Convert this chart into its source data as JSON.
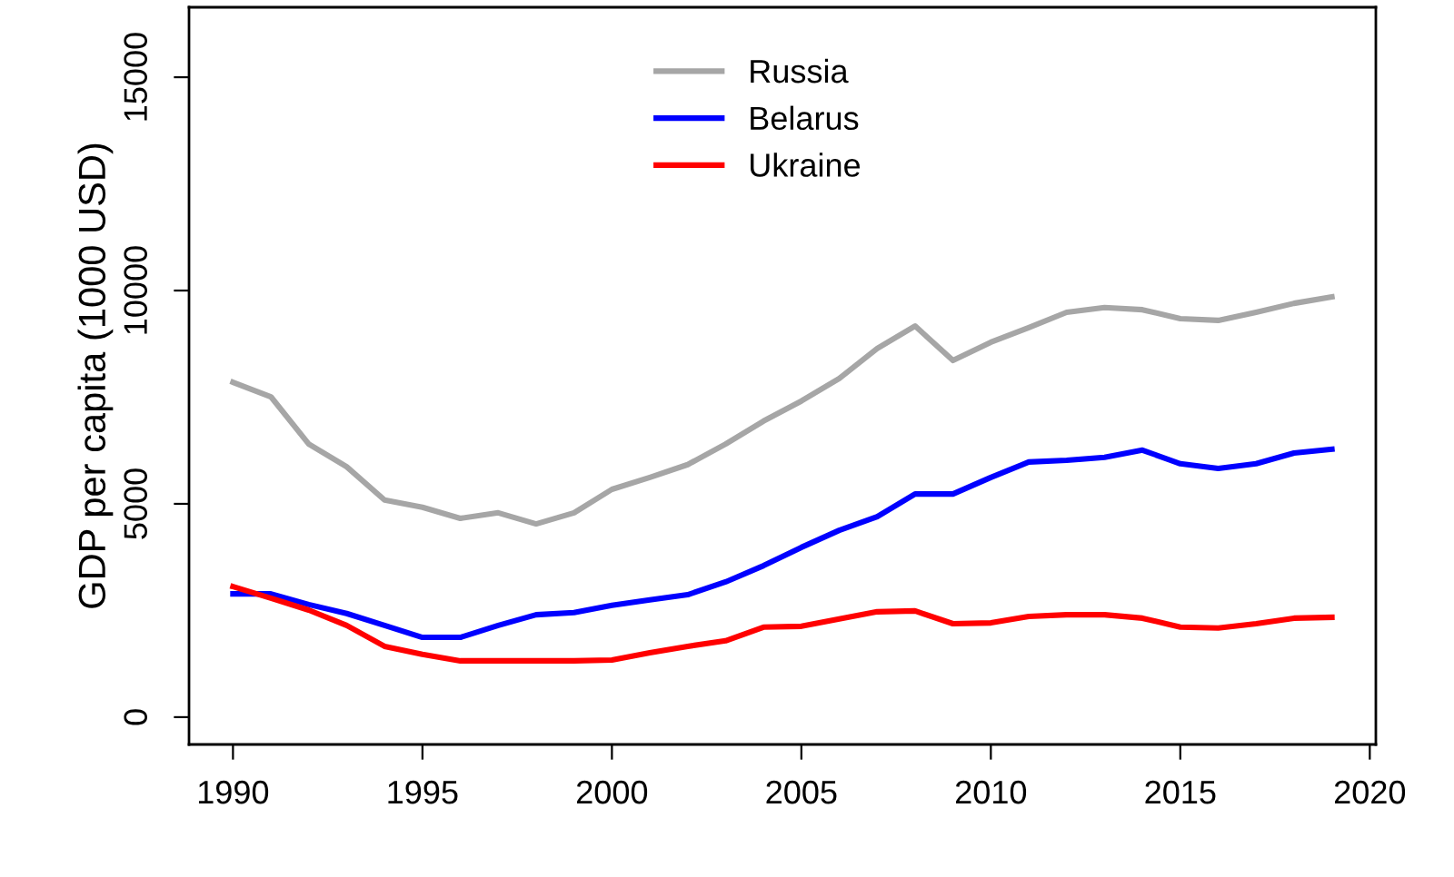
{
  "chart_data": {
    "type": "line",
    "ylabel": "GDP per capita (1000 USD)",
    "x": [
      1990,
      1991,
      1992,
      1993,
      1994,
      1995,
      1996,
      1997,
      1998,
      1999,
      2000,
      2001,
      2002,
      2003,
      2004,
      2005,
      2006,
      2007,
      2008,
      2009,
      2010,
      2011,
      2012,
      2013,
      2014,
      2015,
      2016,
      2017,
      2018,
      2019
    ],
    "series": [
      {
        "name": "Russia",
        "color": "#a6a6a6",
        "values": [
          7850,
          7510,
          6400,
          5870,
          5090,
          4920,
          4660,
          4790,
          4530,
          4790,
          5340,
          5620,
          5920,
          6400,
          6940,
          7410,
          7940,
          8640,
          9170,
          8360,
          8790,
          9130,
          9490,
          9600,
          9550,
          9340,
          9300,
          9490,
          9700,
          9850
        ]
      },
      {
        "name": "Belarus",
        "color": "#0000ff",
        "values": [
          2890,
          2890,
          2640,
          2430,
          2150,
          1870,
          1870,
          2150,
          2400,
          2450,
          2620,
          2750,
          2870,
          3170,
          3550,
          3980,
          4380,
          4700,
          5230,
          5230,
          5620,
          5980,
          6020,
          6090,
          6260,
          5940,
          5830,
          5940,
          6190,
          6280
        ]
      },
      {
        "name": "Ukraine",
        "color": "#ff0000",
        "values": [
          3060,
          2790,
          2510,
          2150,
          1660,
          1470,
          1320,
          1320,
          1320,
          1320,
          1340,
          1510,
          1660,
          1790,
          2110,
          2130,
          2300,
          2470,
          2490,
          2190,
          2210,
          2360,
          2400,
          2400,
          2320,
          2110,
          2090,
          2190,
          2320,
          2340
        ]
      }
    ],
    "xlim": [
      1988.84,
      2020.16
    ],
    "xticks": [
      1990,
      1995,
      2000,
      2005,
      2010,
      2015,
      2020
    ],
    "ylim": [
      -640,
      16640
    ],
    "yticks": [
      0,
      5000,
      10000,
      15000
    ],
    "grid": false,
    "legend": "top",
    "line_style": "solid",
    "marker": "none"
  }
}
